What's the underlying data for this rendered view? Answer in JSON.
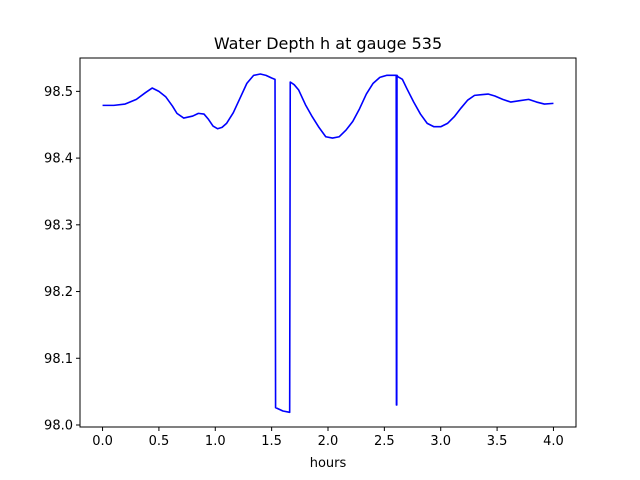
{
  "chart_data": {
    "type": "line",
    "title": "Water Depth h at gauge 535",
    "xlabel": "hours",
    "ylabel": "",
    "xlim": [
      -0.2,
      4.2
    ],
    "ylim": [
      97.997,
      98.55
    ],
    "xticks": [
      0.0,
      0.5,
      1.0,
      1.5,
      2.0,
      2.5,
      3.0,
      3.5,
      4.0
    ],
    "xtick_labels": [
      "0.0",
      "0.5",
      "1.0",
      "1.5",
      "2.0",
      "2.5",
      "3.0",
      "3.5",
      "4.0"
    ],
    "yticks": [
      98.0,
      98.1,
      98.2,
      98.3,
      98.4,
      98.5
    ],
    "ytick_labels": [
      "98.0",
      "98.1",
      "98.2",
      "98.3",
      "98.4",
      "98.5"
    ],
    "grid": false,
    "series": [
      {
        "color": "#0000ff",
        "x": [
          0.0,
          0.1,
          0.2,
          0.3,
          0.38,
          0.44,
          0.5,
          0.56,
          0.62,
          0.66,
          0.72,
          0.8,
          0.85,
          0.9,
          0.94,
          0.98,
          1.02,
          1.06,
          1.1,
          1.16,
          1.22,
          1.28,
          1.34,
          1.4,
          1.45,
          1.5,
          1.53,
          1.535,
          1.6,
          1.66,
          1.665,
          1.7,
          1.74,
          1.8,
          1.86,
          1.92,
          1.98,
          2.04,
          2.1,
          2.16,
          2.22,
          2.28,
          2.34,
          2.4,
          2.46,
          2.52,
          2.57,
          2.605,
          2.607,
          2.61,
          2.612,
          2.62,
          2.66,
          2.7,
          2.76,
          2.82,
          2.88,
          2.94,
          3.0,
          3.06,
          3.12,
          3.18,
          3.24,
          3.3,
          3.36,
          3.42,
          3.48,
          3.55,
          3.62,
          3.7,
          3.78,
          3.85,
          3.92,
          4.0
        ],
        "y": [
          98.479,
          98.479,
          98.481,
          98.488,
          98.498,
          98.505,
          98.5,
          98.492,
          98.478,
          98.467,
          98.46,
          98.463,
          98.467,
          98.466,
          98.458,
          98.448,
          98.444,
          98.446,
          98.452,
          98.468,
          98.49,
          98.512,
          98.524,
          98.526,
          98.524,
          98.52,
          98.518,
          98.026,
          98.021,
          98.019,
          98.514,
          98.51,
          98.502,
          98.48,
          98.462,
          98.446,
          98.432,
          98.43,
          98.432,
          98.442,
          98.455,
          98.474,
          98.496,
          98.512,
          98.521,
          98.524,
          98.524,
          98.524,
          98.03,
          98.03,
          98.524,
          98.522,
          98.518,
          98.504,
          98.484,
          98.466,
          98.452,
          98.447,
          98.447,
          98.452,
          98.462,
          98.475,
          98.487,
          98.494,
          98.495,
          98.496,
          98.493,
          98.488,
          98.484,
          98.486,
          98.488,
          98.484,
          98.481,
          98.482
        ]
      }
    ]
  }
}
